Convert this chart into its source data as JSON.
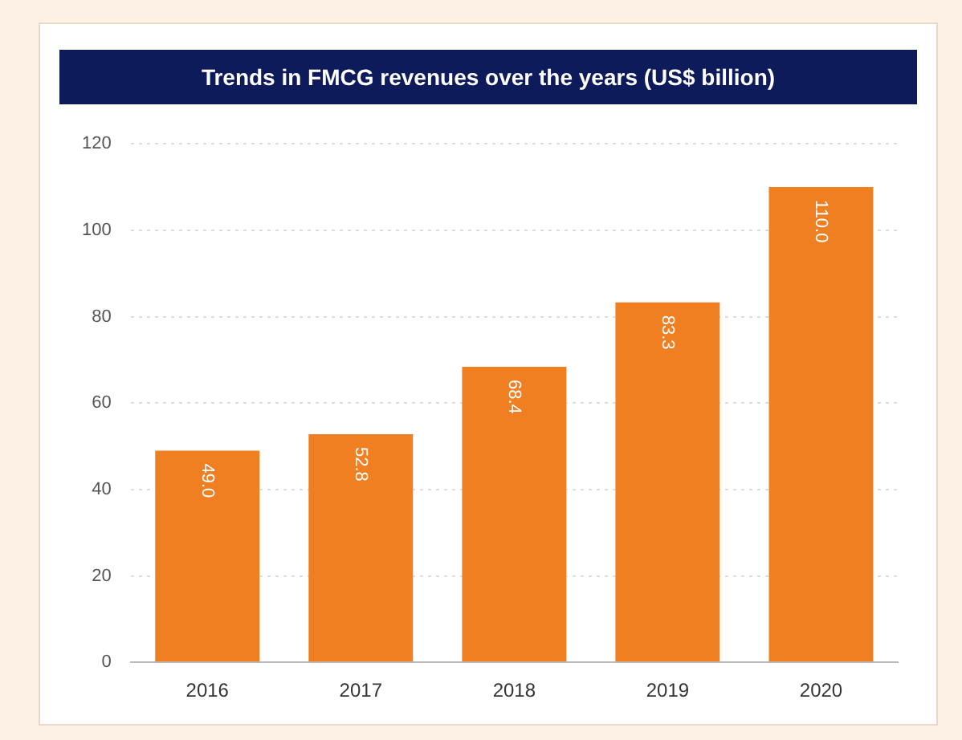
{
  "chart_data": {
    "type": "bar",
    "title": "Trends in FMCG revenues over the years (US$ billion)",
    "categories": [
      "2016",
      "2017",
      "2018",
      "2019",
      "2020"
    ],
    "values": [
      49.0,
      52.8,
      68.4,
      83.3,
      110.0
    ],
    "value_labels": [
      "49.0",
      "52.8",
      "68.4",
      "83.3",
      "110.0"
    ],
    "color": "#f07f22",
    "ylim": [
      0,
      120
    ],
    "yticks": [
      0,
      20,
      40,
      60,
      80,
      100,
      120
    ],
    "grid": "y",
    "legend": false
  }
}
